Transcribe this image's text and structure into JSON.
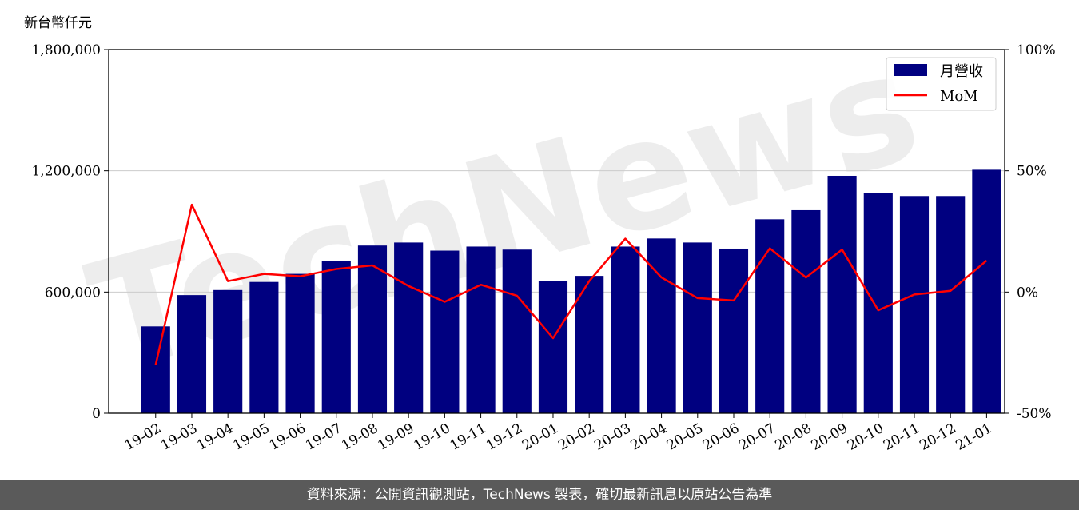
{
  "unit_label": "新台幣仟元",
  "footer": "資料來源：公開資訊觀測站，TechNews 製表，確切最新訊息以原站公告為準",
  "watermark": "TechNews",
  "colors": {
    "bar": "#000080",
    "line": "#ff0000",
    "footer_bg": "#5a5a5a",
    "grid": "#cccccc"
  },
  "chart_data": {
    "type": "bar",
    "categories": [
      "19-02",
      "19-03",
      "19-04",
      "19-05",
      "19-06",
      "19-07",
      "19-08",
      "19-09",
      "19-10",
      "19-11",
      "19-12",
      "20-01",
      "20-02",
      "20-03",
      "20-04",
      "20-05",
      "20-06",
      "20-07",
      "20-08",
      "20-09",
      "20-10",
      "20-11",
      "20-12",
      "21-01"
    ],
    "series": [
      {
        "name": "月營收",
        "type": "bar",
        "axis": "left",
        "values": [
          430000,
          585000,
          610000,
          650000,
          690000,
          755000,
          830000,
          845000,
          805000,
          825000,
          810000,
          655000,
          680000,
          825000,
          865000,
          845000,
          815000,
          960000,
          1005000,
          1175000,
          1090000,
          1075000,
          1075000,
          1205000
        ]
      },
      {
        "name": "MoM",
        "type": "line",
        "axis": "right",
        "values": [
          -30,
          36,
          4.5,
          7.5,
          6.5,
          9.5,
          11,
          2.5,
          -4,
          3,
          -1.5,
          -19,
          4.5,
          22,
          6,
          -2.5,
          -3.5,
          18,
          6,
          17.5,
          -7.5,
          -1,
          0.5,
          13
        ]
      }
    ],
    "y_left": {
      "ylim": [
        0,
        1800000
      ],
      "ticks": [
        0,
        600000,
        1200000,
        1800000
      ],
      "tick_labels": [
        "0",
        "600,000",
        "1,200,000",
        "1,800,000"
      ]
    },
    "y_right": {
      "ylim": [
        -50,
        100
      ],
      "ticks": [
        -50,
        0,
        50,
        100
      ],
      "tick_labels": [
        "-50%",
        "0%",
        "50%",
        "100%"
      ]
    },
    "grid": true,
    "legend": "top-right"
  }
}
